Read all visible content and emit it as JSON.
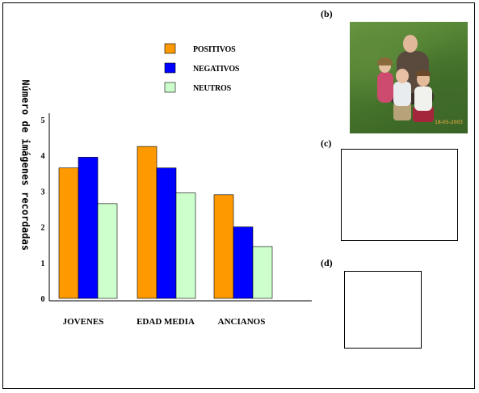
{
  "chart_data": {
    "type": "bar",
    "categories": [
      "JOVENES",
      "EDAD MEDIA",
      "ANCIANOS"
    ],
    "series": [
      {
        "name": "POSITIVOS",
        "values": [
          3.65,
          4.25,
          2.9
        ],
        "color": "#ff9900"
      },
      {
        "name": "NEGATIVOS",
        "values": [
          3.95,
          3.65,
          2.0
        ],
        "color": "#0000ff"
      },
      {
        "name": "NEUTROS",
        "values": [
          2.65,
          2.95,
          1.45
        ],
        "color": "#ccffcc"
      }
    ],
    "yticks": [
      "0",
      "1",
      "2",
      "3",
      "4",
      "5"
    ],
    "ylim": [
      0,
      5
    ],
    "ylabel": "Número de imágenes recordadas",
    "grid": false,
    "legend_position": "top"
  },
  "panels": {
    "b": "(b)",
    "c": "(c)",
    "d": "(d)"
  },
  "photo": {
    "date_stamp": "18-05-2003"
  }
}
